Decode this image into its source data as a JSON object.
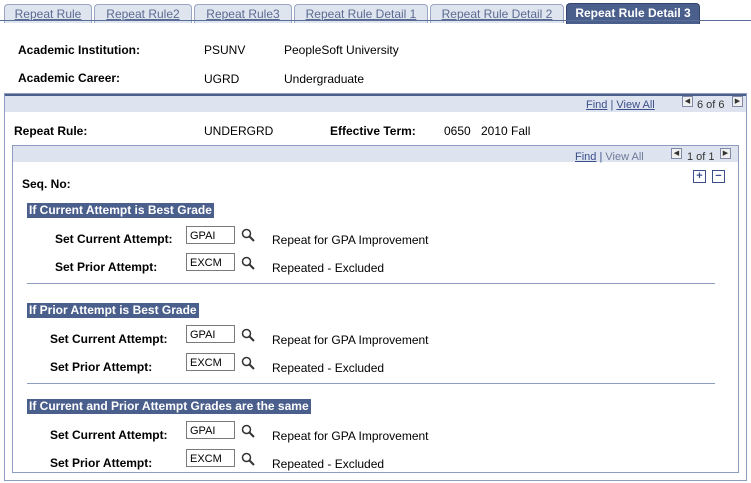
{
  "tabs": [
    {
      "label": "Repeat Rule",
      "active": false
    },
    {
      "label": "Repeat Rule2",
      "active": false
    },
    {
      "label": "Repeat Rule3",
      "active": false
    },
    {
      "label": "Repeat Rule Detail 1",
      "active": false
    },
    {
      "label": "Repeat Rule Detail 2",
      "active": false
    },
    {
      "label": "Repeat Rule Detail 3",
      "active": true
    }
  ],
  "header": {
    "institution_label": "Academic Institution:",
    "institution_code": "PSUNV",
    "institution_name": "PeopleSoft University",
    "career_label": "Academic Career:",
    "career_code": "UGRD",
    "career_name": "Undergraduate"
  },
  "outer_grid": {
    "find": "Find",
    "sep": "|",
    "view_all": "View All",
    "count": "6 of 6",
    "repeat_rule_label": "Repeat Rule:",
    "repeat_rule_value": "UNDERGRD",
    "effective_term_label": "Effective Term:",
    "effective_term_code": "0650",
    "effective_term_desc": "2010 Fall"
  },
  "inner_grid": {
    "find": "Find",
    "sep": "|",
    "view_all": "View All",
    "count": "1 of 1",
    "seq_label": "Seq. No:",
    "add": "+",
    "remove": "−"
  },
  "sections": [
    {
      "title": "If Current Attempt is Best Grade",
      "current_label": "Set Current Attempt:",
      "current_value": "GPAI",
      "current_desc": "Repeat for GPA Improvement",
      "prior_label": "Set Prior Attempt:",
      "prior_value": "EXCM",
      "prior_desc": "Repeated - Excluded"
    },
    {
      "title": "If Prior Attempt is Best Grade",
      "current_label": "Set Current Attempt:",
      "current_value": "GPAI",
      "current_desc": "Repeat for GPA Improvement",
      "prior_label": "Set Prior Attempt:",
      "prior_value": "EXCM",
      "prior_desc": "Repeated - Excluded"
    },
    {
      "title": "If Current and Prior Attempt Grades are the same",
      "current_label": "Set Current Attempt:",
      "current_value": "GPAI",
      "current_desc": "Repeat for GPA Improvement",
      "prior_label": "Set Prior Attempt:",
      "prior_value": "EXCM",
      "prior_desc": "Repeated - Excluded"
    }
  ],
  "icons": {
    "lookup": "magnifier-icon",
    "first": "triangle-left-icon",
    "last": "triangle-right-icon"
  },
  "colors": {
    "accent": "#4b5f8c",
    "link": "#3b4e8a",
    "frame": "#8d9cc0"
  }
}
